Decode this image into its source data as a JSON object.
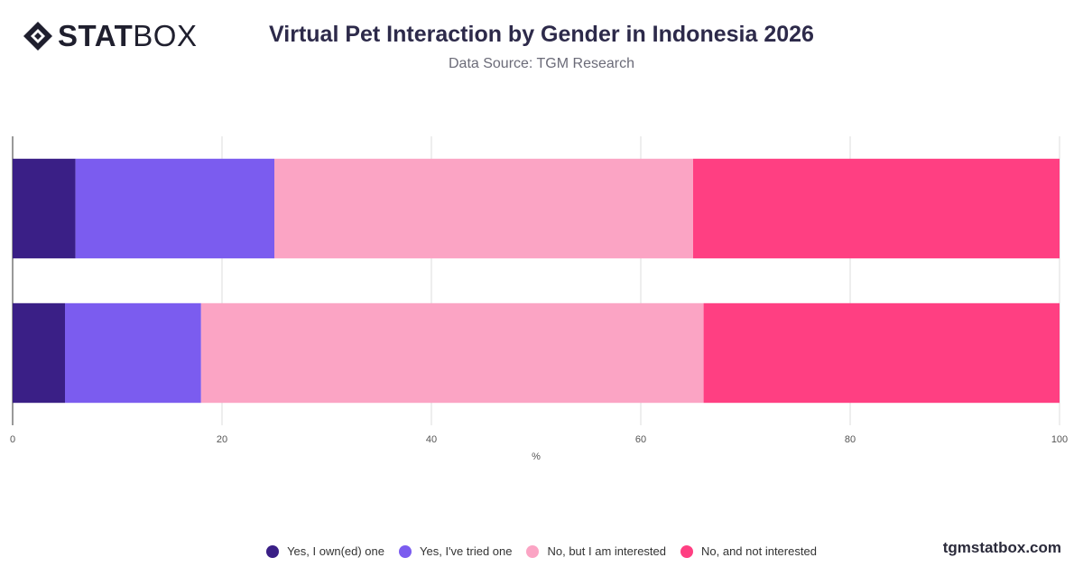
{
  "brand": {
    "logo_bold": "STAT",
    "logo_light": "BOX",
    "logo_icon": "diamond-logo-icon"
  },
  "header": {
    "title": "Virtual Pet Interaction by Gender in Indonesia 2026",
    "subtitle": "Data Source: TGM Research"
  },
  "footer": {
    "site": "tgmstatbox.com"
  },
  "colors": {
    "owned": "#3a1f86",
    "tried": "#7b5cef",
    "interested": "#fba4c4",
    "not_interested": "#ff3f82",
    "grid": "#dddddd",
    "axis": "#333333"
  },
  "chart_data": {
    "type": "bar",
    "orientation": "horizontal",
    "stacked": true,
    "categories": [
      "",
      ""
    ],
    "series": [
      {
        "name": "Yes, I own(ed) one",
        "values": [
          6,
          5
        ]
      },
      {
        "name": "Yes, I've tried one",
        "values": [
          19,
          13
        ]
      },
      {
        "name": "No, but I am interested",
        "values": [
          40,
          48
        ]
      },
      {
        "name": "No, and not interested",
        "values": [
          35,
          34
        ]
      }
    ],
    "xlim": [
      0,
      100
    ],
    "xticks": [
      "0",
      "20",
      "40",
      "60",
      "80",
      "100"
    ],
    "xlabel": "%",
    "ylabel": "",
    "grid": true,
    "legend_position": "bottom"
  }
}
